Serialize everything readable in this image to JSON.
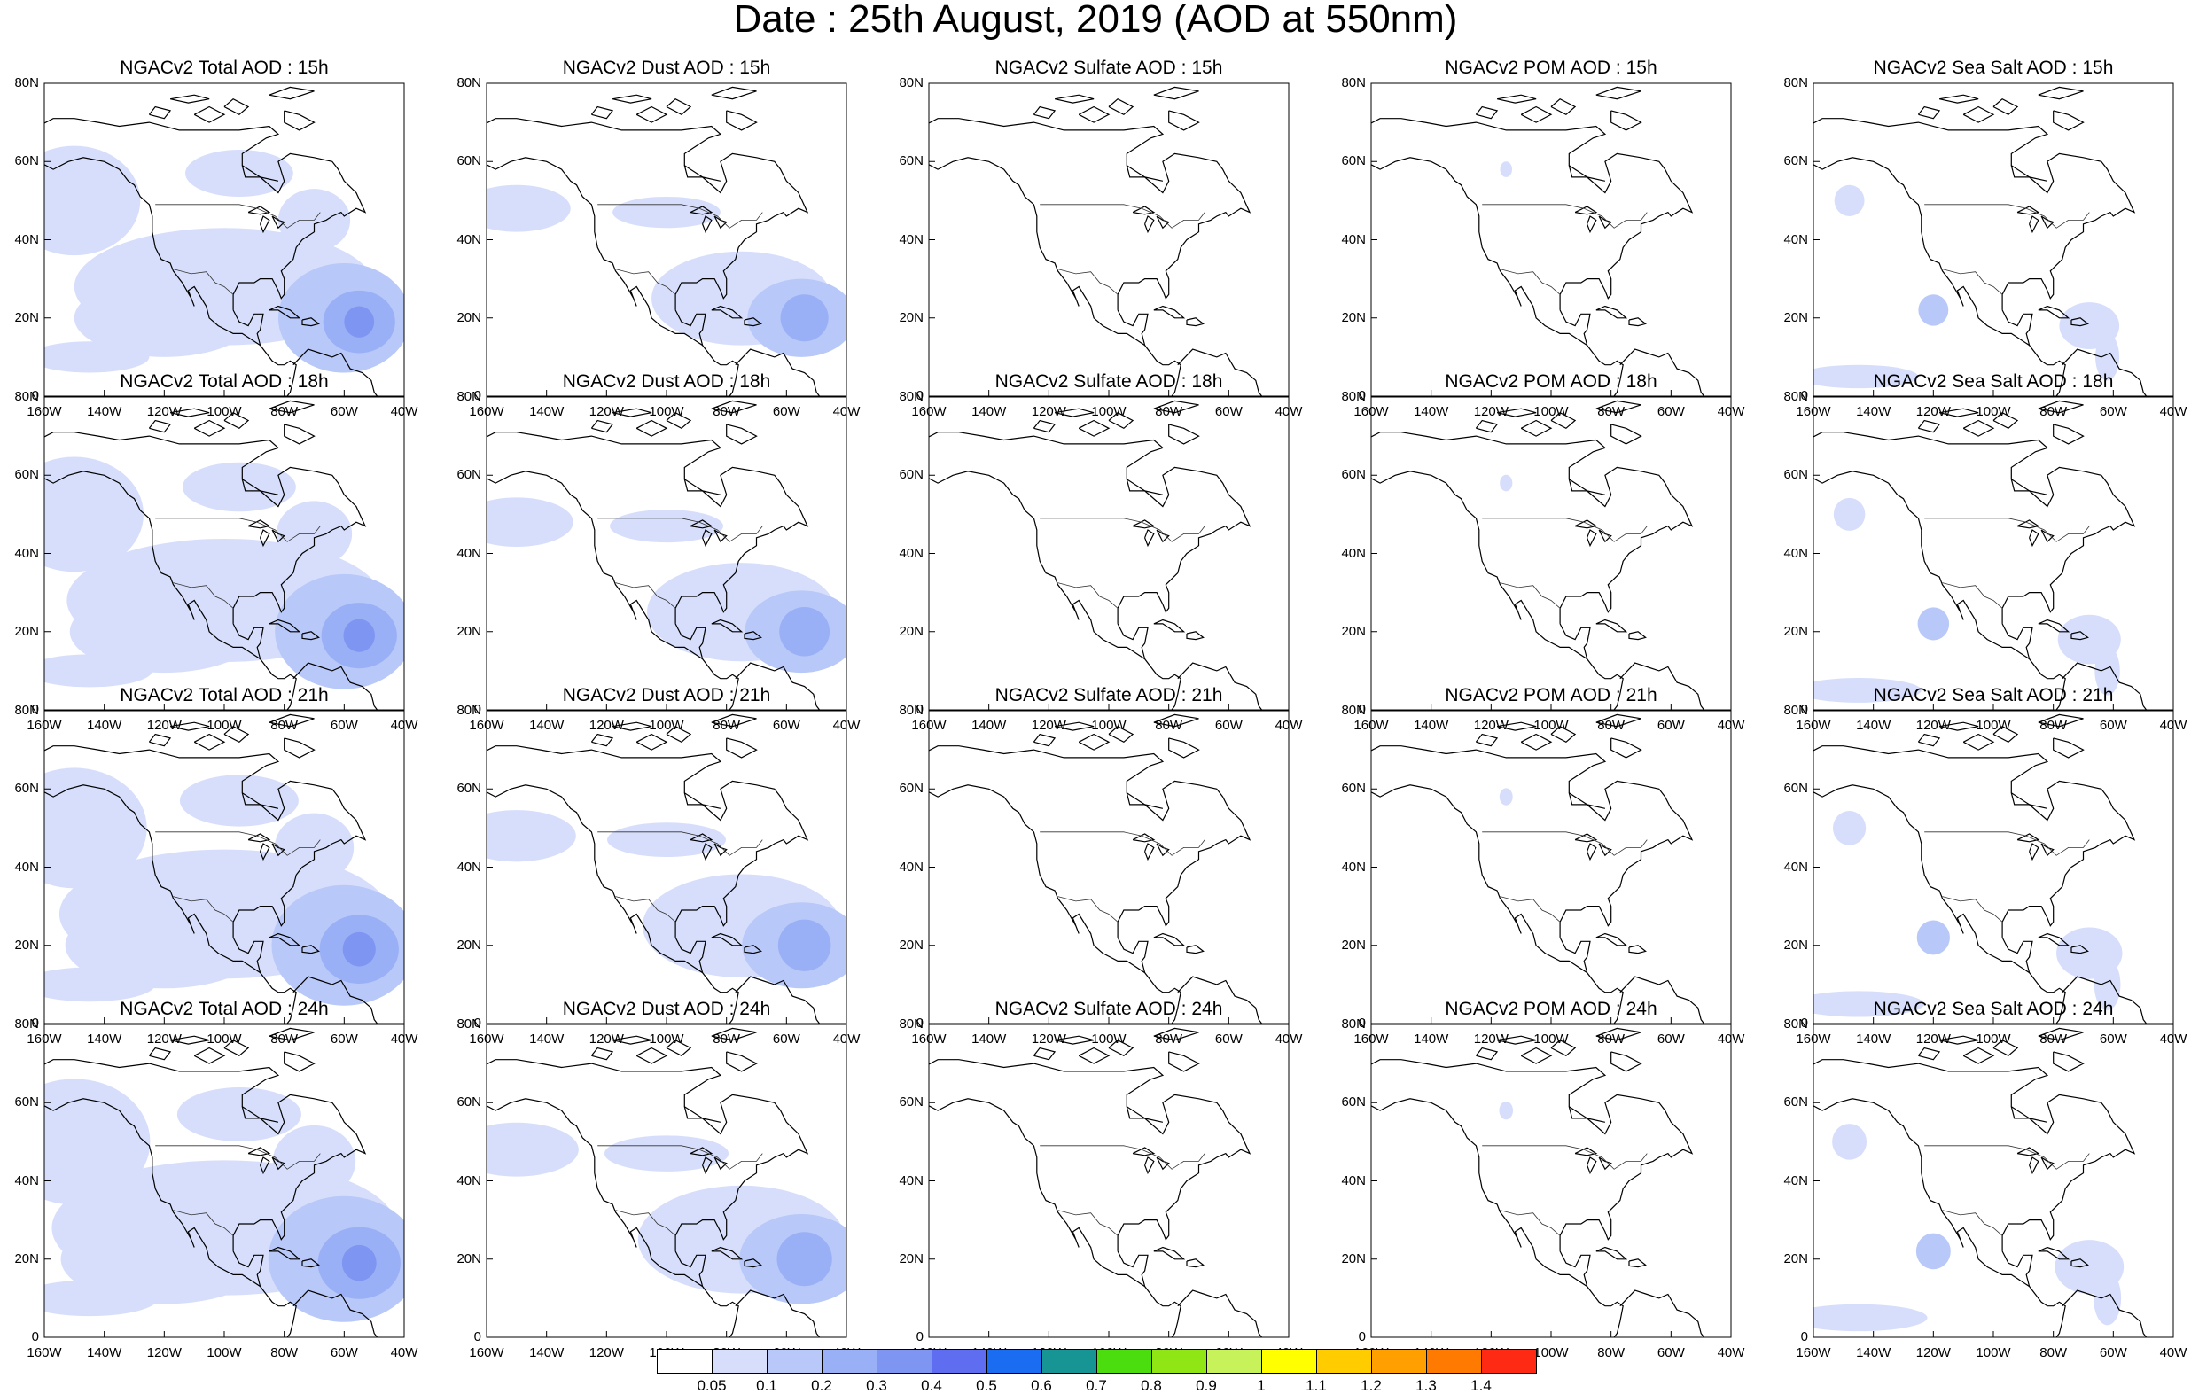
{
  "title": "Date : 25th August, 2019 (AOD at 550nm)",
  "map": {
    "lat_labels": [
      "80N",
      "60N",
      "40N",
      "20N",
      "0"
    ],
    "lon_labels": [
      "160W",
      "140W",
      "120W",
      "100W",
      "80W",
      "60W",
      "40W"
    ],
    "lat_range": [
      0,
      80
    ],
    "lon_range": [
      -160,
      -40
    ]
  },
  "panel_titles": [
    [
      "NGACv2 Total AOD : 15h",
      "NGACv2 Dust AOD : 15h",
      "NGACv2 Sulfate AOD : 15h",
      "NGACv2 POM AOD : 15h",
      "NGACv2 Sea Salt AOD : 15h"
    ],
    [
      "NGACv2 Total AOD : 18h",
      "NGACv2 Dust AOD : 18h",
      "NGACv2 Sulfate AOD : 18h",
      "NGACv2 POM AOD : 18h",
      "NGACv2 Sea Salt AOD : 18h"
    ],
    [
      "NGACv2 Total AOD : 21h",
      "NGACv2 Dust AOD : 21h",
      "NGACv2 Sulfate AOD : 21h",
      "NGACv2 POM AOD : 21h",
      "NGACv2 Sea Salt AOD : 21h"
    ],
    [
      "NGACv2 Total AOD : 24h",
      "NGACv2 Dust AOD : 24h",
      "NGACv2 Sulfate AOD : 24h",
      "NGACv2 POM AOD : 24h",
      "NGACv2 Sea Salt  AOD : 24h"
    ]
  ],
  "colorbar": {
    "labels": [
      "0.05",
      "0.1",
      "0.2",
      "0.3",
      "0.4",
      "0.5",
      "0.6",
      "0.7",
      "0.8",
      "0.9",
      "1",
      "1.1",
      "1.2",
      "1.3",
      "1.4"
    ],
    "colors": [
      "#ffffff",
      "#d6defb",
      "#b8c8f8",
      "#9ab0f6",
      "#7f95f2",
      "#5f6ef0",
      "#1a6cf0",
      "#179494",
      "#4cdd0f",
      "#90e614",
      "#c8f25a",
      "#ffff00",
      "#ffcc00",
      "#ffa000",
      "#ff7a00",
      "#ff2a14"
    ]
  },
  "palette": {
    "aod_light": "#d6defb",
    "aod_mid": "#b8c8f8",
    "aod_high": "#9ab0f6",
    "aod_peak": "#7f95f2",
    "coast": "#000000"
  }
}
